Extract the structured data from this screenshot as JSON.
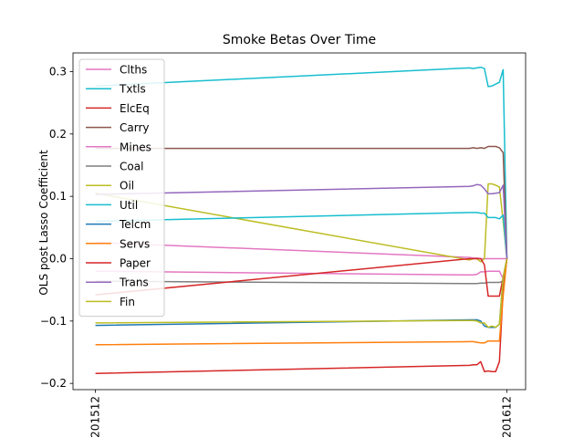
{
  "chart_data": {
    "type": "line",
    "title": "Smoke Betas Over Time",
    "xlabel": "",
    "ylabel": "OLS post Lasso Coefficient",
    "x": [
      0,
      100,
      101,
      102,
      103,
      104,
      105,
      106,
      107,
      108,
      109,
      110
    ],
    "x_ticks": [
      {
        "x": 0,
        "label": "201512"
      },
      {
        "x": 110,
        "label": "201612"
      }
    ],
    "xlim": [
      -6,
      115
    ],
    "ylim": [
      -0.21,
      0.33
    ],
    "y_ticks": [
      -0.2,
      -0.1,
      0.0,
      0.1,
      0.2,
      0.3
    ],
    "y_tick_labels": [
      "−0.2",
      "−0.1",
      "0.0",
      "0.1",
      "0.2",
      "0.3"
    ],
    "grid": false,
    "legend_placement": "upper-left",
    "series": [
      {
        "name": "Clths",
        "color": "#e377c2",
        "values": [
          -0.02,
          -0.026,
          -0.026,
          -0.025,
          -0.021,
          -0.021,
          -0.02,
          -0.02,
          -0.02,
          -0.02,
          -0.032,
          0.0
        ]
      },
      {
        "name": "Txtls",
        "color": "#17becf",
        "values": [
          0.277,
          0.306,
          0.305,
          0.306,
          0.307,
          0.305,
          0.276,
          0.277,
          0.28,
          0.283,
          0.303,
          0.0
        ]
      },
      {
        "name": "ElcEq",
        "color": "#d62728",
        "values": [
          -0.184,
          -0.171,
          -0.17,
          -0.17,
          -0.165,
          -0.181,
          -0.18,
          -0.181,
          -0.181,
          -0.165,
          -0.05,
          0.0
        ]
      },
      {
        "name": "Carry",
        "color": "#8c564b",
        "values": [
          0.177,
          0.177,
          0.178,
          0.177,
          0.178,
          0.177,
          0.18,
          0.18,
          0.18,
          0.178,
          0.17,
          0.0
        ]
      },
      {
        "name": "Mines",
        "color": "#e377c2",
        "values": [
          0.026,
          0.002,
          0.001,
          0.001,
          0.0,
          0.0,
          0.0,
          0.0,
          0.0,
          0.0,
          0.0,
          0.0
        ]
      },
      {
        "name": "Coal",
        "color": "#7f7f7f",
        "values": [
          -0.036,
          -0.04,
          -0.04,
          -0.04,
          -0.039,
          -0.039,
          -0.038,
          -0.038,
          -0.038,
          -0.038,
          -0.036,
          0.0
        ]
      },
      {
        "name": "Oil",
        "color": "#bcbd22",
        "values": [
          0.105,
          -0.002,
          0.0,
          0.0,
          -0.005,
          0.0,
          0.12,
          0.12,
          0.118,
          0.115,
          0.06,
          0.0
        ]
      },
      {
        "name": "Util",
        "color": "#17becf",
        "values": [
          0.06,
          0.074,
          0.074,
          0.074,
          0.073,
          0.073,
          0.066,
          0.066,
          0.066,
          0.064,
          0.07,
          0.0
        ]
      },
      {
        "name": "Telcm",
        "color": "#1f77b4",
        "values": [
          -0.107,
          -0.098,
          -0.098,
          -0.098,
          -0.1,
          -0.108,
          -0.11,
          -0.11,
          -0.11,
          -0.105,
          -0.03,
          0.0
        ]
      },
      {
        "name": "Servs",
        "color": "#ff7f0e",
        "values": [
          -0.138,
          -0.133,
          -0.133,
          -0.134,
          -0.135,
          -0.135,
          -0.132,
          -0.132,
          -0.132,
          -0.132,
          -0.06,
          0.0
        ]
      },
      {
        "name": "Paper",
        "color": "#d62728",
        "values": [
          -0.058,
          0.0,
          0.0,
          0.0,
          0.0,
          -0.01,
          -0.06,
          -0.06,
          -0.06,
          -0.06,
          -0.03,
          0.0
        ]
      },
      {
        "name": "Trans",
        "color": "#9467bd",
        "values": [
          0.103,
          0.116,
          0.117,
          0.119,
          0.118,
          0.112,
          0.104,
          0.104,
          0.105,
          0.106,
          0.118,
          0.0
        ]
      },
      {
        "name": "Fin",
        "color": "#bcbd22",
        "values": [
          -0.103,
          -0.099,
          -0.099,
          -0.1,
          -0.103,
          -0.103,
          -0.11,
          -0.108,
          -0.11,
          -0.105,
          -0.03,
          0.0
        ]
      }
    ]
  }
}
